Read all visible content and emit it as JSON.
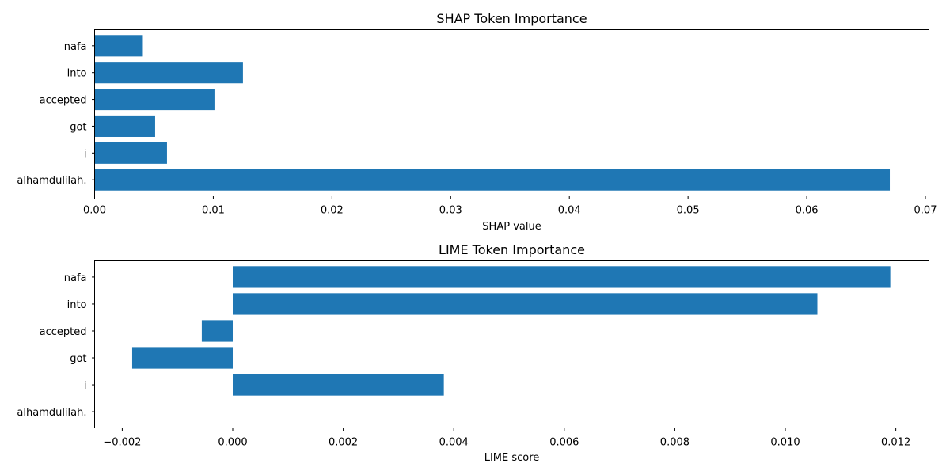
{
  "chart_data": [
    {
      "type": "bar",
      "orientation": "horizontal",
      "title": "SHAP Token Importance",
      "xlabel": "SHAP value",
      "ylabel": "",
      "categories": [
        "nafa",
        "into",
        "accepted",
        "got",
        "i",
        "alhamdulilah."
      ],
      "values": [
        0.004,
        0.0125,
        0.0101,
        0.0051,
        0.0061,
        0.067
      ],
      "xlim": [
        0,
        0.0703
      ],
      "xticks": [
        0.0,
        0.01,
        0.02,
        0.03,
        0.04,
        0.05,
        0.06,
        0.07
      ],
      "xtick_labels": [
        "0.00",
        "0.01",
        "0.02",
        "0.03",
        "0.04",
        "0.05",
        "0.06",
        "0.07"
      ],
      "bar_color": "#1f77b4",
      "grid": false
    },
    {
      "type": "bar",
      "orientation": "horizontal",
      "title": "LIME Token Importance",
      "xlabel": "LIME score",
      "ylabel": "",
      "categories": [
        "nafa",
        "into",
        "accepted",
        "got",
        "i",
        "alhamdulilah."
      ],
      "values": [
        0.0119,
        0.01058,
        -0.00056,
        -0.00182,
        0.00382,
        0.0
      ],
      "xlim": [
        -0.0025,
        0.0126
      ],
      "xticks": [
        -0.002,
        0.0,
        0.002,
        0.004,
        0.006,
        0.008,
        0.01,
        0.012
      ],
      "xtick_labels": [
        "−0.002",
        "0.000",
        "0.002",
        "0.004",
        "0.006",
        "0.008",
        "0.010",
        "0.012"
      ],
      "bar_color": "#1f77b4",
      "grid": false
    }
  ]
}
